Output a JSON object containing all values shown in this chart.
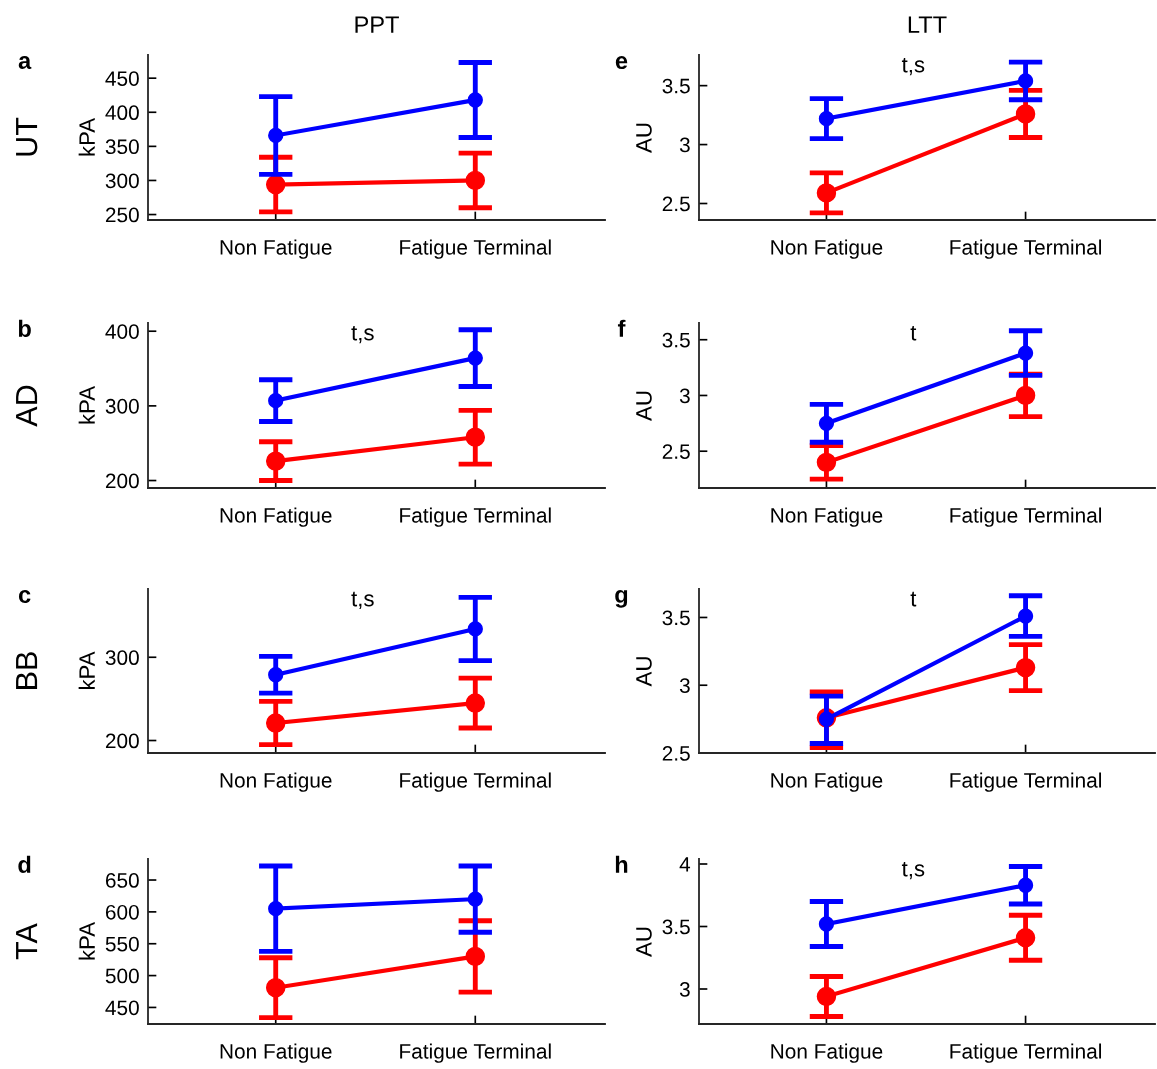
{
  "chart_data": [
    {
      "type": "line",
      "title": "PPT",
      "ylabel": "kPA",
      "annotations": [
        "a",
        "UT"
      ],
      "categories": [
        "Non Fatigue",
        "Fatigue Terminal"
      ],
      "ylim": [
        242,
        484
      ],
      "yticks": [
        250,
        300,
        350,
        400,
        450
      ],
      "marker": "circle",
      "line_style": "solid",
      "series": [
        {
          "color": "#0000ff",
          "values": [
            366,
            418
          ],
          "errors": [
            57,
            55
          ]
        },
        {
          "color": "#ff0000",
          "values": [
            294,
            300
          ],
          "errors": [
            40,
            40
          ]
        }
      ]
    },
    {
      "type": "line",
      "title": "LTT",
      "ylabel": "AU",
      "annotations": [
        "e",
        "t,s"
      ],
      "categories": [
        "Non Fatigue",
        "Fatigue Terminal"
      ],
      "ylim": [
        2.36,
        3.76
      ],
      "yticks": [
        2.5,
        3,
        3.5
      ],
      "marker": "circle",
      "line_style": "solid",
      "series": [
        {
          "color": "#0000ff",
          "values": [
            3.22,
            3.54
          ],
          "errors": [
            0.17,
            0.16
          ]
        },
        {
          "color": "#ff0000",
          "values": [
            2.59,
            3.26
          ],
          "errors": [
            0.17,
            0.2
          ]
        }
      ]
    },
    {
      "type": "line",
      "ylabel": "kPA",
      "annotations": [
        "b",
        "AD",
        "t,s"
      ],
      "categories": [
        "Non Fatigue",
        "Fatigue Terminal"
      ],
      "ylim": [
        190,
        411
      ],
      "yticks": [
        200,
        300,
        400
      ],
      "marker": "circle",
      "line_style": "solid",
      "series": [
        {
          "color": "#0000ff",
          "values": [
            307,
            364
          ],
          "errors": [
            28,
            38
          ]
        },
        {
          "color": "#ff0000",
          "values": [
            226,
            258
          ],
          "errors": [
            26,
            36
          ]
        }
      ]
    },
    {
      "type": "line",
      "ylabel": "AU",
      "annotations": [
        "f",
        "t"
      ],
      "categories": [
        "Non Fatigue",
        "Fatigue Terminal"
      ],
      "ylim": [
        2.17,
        3.65
      ],
      "yticks": [
        2.5,
        3,
        3.5
      ],
      "marker": "circle",
      "line_style": "solid",
      "series": [
        {
          "color": "#0000ff",
          "values": [
            2.75,
            3.38
          ],
          "errors": [
            0.17,
            0.2
          ]
        },
        {
          "color": "#ff0000",
          "values": [
            2.4,
            3.0
          ],
          "errors": [
            0.15,
            0.19
          ]
        }
      ]
    },
    {
      "type": "line",
      "ylabel": "kPA",
      "annotations": [
        "c",
        "BB",
        "t,s"
      ],
      "categories": [
        "Non Fatigue",
        "Fatigue Terminal"
      ],
      "ylim": [
        185,
        382
      ],
      "yticks": [
        200,
        300
      ],
      "marker": "circle",
      "line_style": "solid",
      "series": [
        {
          "color": "#0000ff",
          "values": [
            279,
            334
          ],
          "errors": [
            22,
            38
          ]
        },
        {
          "color": "#ff0000",
          "values": [
            221,
            245
          ],
          "errors": [
            26,
            30
          ]
        }
      ]
    },
    {
      "type": "line",
      "ylabel": "AU",
      "annotations": [
        "g",
        "t"
      ],
      "categories": [
        "Non Fatigue",
        "Fatigue Terminal"
      ],
      "ylim": [
        2.5,
        3.71
      ],
      "yticks": [
        2.5,
        3,
        3.5
      ],
      "marker": "circle",
      "line_style": "solid",
      "series": [
        {
          "color": "#0000ff",
          "values": [
            2.75,
            3.51
          ],
          "errors": [
            [
              2.57,
              2.92
            ],
            0.15
          ]
        },
        {
          "color": "#ff0000",
          "values": [
            2.76,
            3.13
          ],
          "errors": [
            [
              2.54,
              2.95
            ],
            0.17
          ]
        }
      ]
    },
    {
      "type": "line",
      "ylabel": "kPA",
      "annotations": [
        "d",
        "TA"
      ],
      "categories": [
        "Non Fatigue",
        "Fatigue Terminal"
      ],
      "ylim": [
        424,
        683
      ],
      "yticks": [
        450,
        500,
        550,
        600,
        650
      ],
      "marker": "circle",
      "line_style": "solid",
      "series": [
        {
          "color": "#0000ff",
          "values": [
            605,
            620
          ],
          "errors": [
            67,
            52
          ]
        },
        {
          "color": "#ff0000",
          "values": [
            481,
            530
          ],
          "errors": [
            47,
            56
          ]
        }
      ]
    },
    {
      "type": "line",
      "ylabel": "AU",
      "annotations": [
        "h",
        "t,s"
      ],
      "categories": [
        "Non Fatigue",
        "Fatigue Terminal"
      ],
      "ylim": [
        2.72,
        4.04
      ],
      "yticks": [
        3,
        3.5,
        4
      ],
      "marker": "circle",
      "line_style": "solid",
      "series": [
        {
          "color": "#0000ff",
          "values": [
            3.52,
            3.83
          ],
          "errors": [
            0.18,
            0.15
          ]
        },
        {
          "color": "#ff0000",
          "values": [
            2.94,
            3.41
          ],
          "errors": [
            0.16,
            0.18
          ]
        }
      ]
    }
  ]
}
